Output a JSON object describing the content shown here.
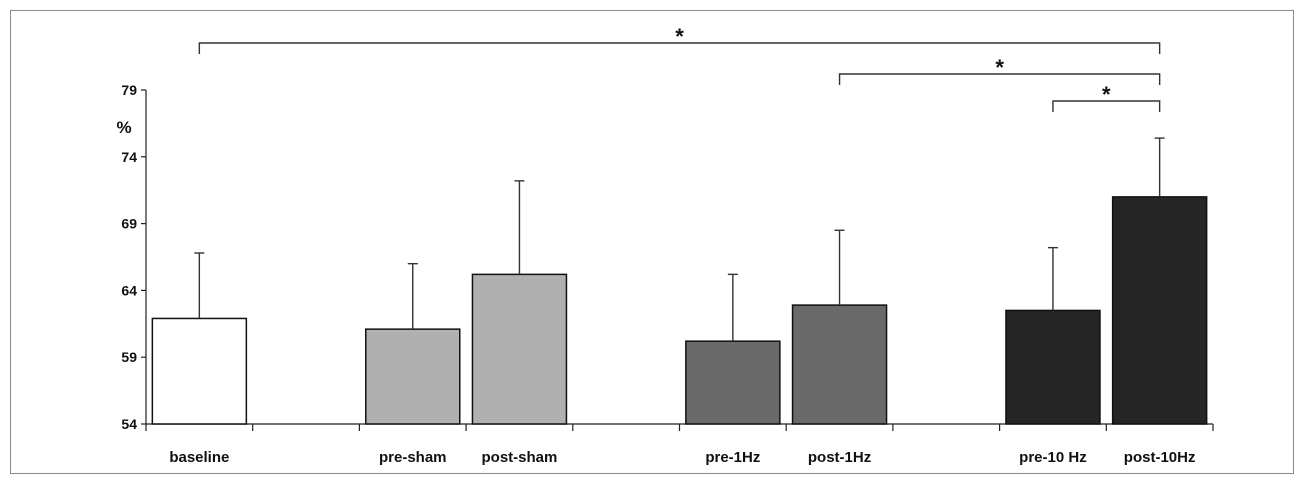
{
  "chart_data": {
    "type": "bar",
    "title": "",
    "xlabel": "",
    "ylabel": "%",
    "ylim": [
      54,
      79
    ],
    "yticks": [
      54,
      59,
      64,
      69,
      74,
      79
    ],
    "grid": false,
    "categories": [
      "baseline",
      "",
      "pre-sham",
      "post-sham",
      "",
      "pre-1Hz",
      "post-1Hz",
      "",
      "pre-10 Hz",
      "post-10Hz"
    ],
    "bars": [
      {
        "label": "baseline",
        "value": 61.9,
        "error": 4.9,
        "color": "#ffffff"
      },
      {
        "label": "pre-sham",
        "value": 61.1,
        "error": 4.9,
        "color": "#b0b0b0"
      },
      {
        "label": "post-sham",
        "value": 65.2,
        "error": 7.0,
        "color": "#b0b0b0"
      },
      {
        "label": "pre-1Hz",
        "value": 60.2,
        "error": 5.0,
        "color": "#6a6a6a"
      },
      {
        "label": "post-1Hz",
        "value": 62.9,
        "error": 5.6,
        "color": "#6a6a6a"
      },
      {
        "label": "pre-10 Hz",
        "value": 62.5,
        "error": 4.7,
        "color": "#262626"
      },
      {
        "label": "post-10Hz",
        "value": 71.0,
        "error": 4.4,
        "color": "#262626"
      }
    ],
    "significance": [
      {
        "from": "baseline",
        "to": "post-10Hz",
        "label": "*"
      },
      {
        "from": "post-1Hz",
        "to": "post-10Hz",
        "label": "*"
      },
      {
        "from": "pre-10 Hz",
        "to": "post-10Hz",
        "label": "*"
      }
    ]
  }
}
